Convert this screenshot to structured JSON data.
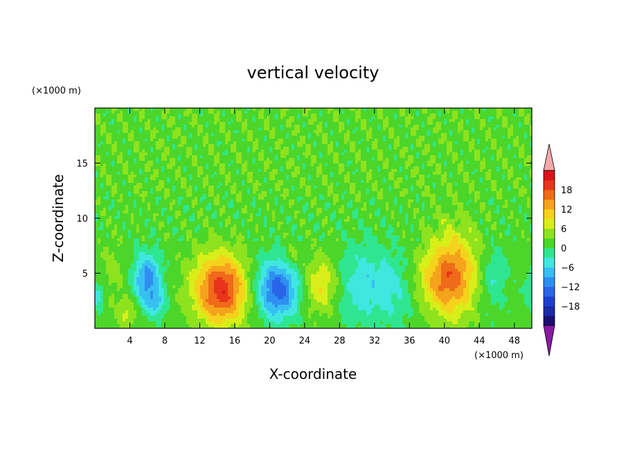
{
  "chart_data": {
    "type": "heatmap",
    "title": "vertical velocity",
    "xlabel": "X-coordinate",
    "ylabel": "Z-coordinate",
    "x_units": "(×1000 m)",
    "y_units": "(×1000 m)",
    "xlim": [
      0,
      50
    ],
    "ylim": [
      0,
      20
    ],
    "x_ticks": [
      4,
      8,
      12,
      16,
      20,
      24,
      28,
      32,
      36,
      40,
      44,
      48
    ],
    "y_ticks": [
      5,
      10,
      15
    ],
    "grid": false,
    "colorbar": {
      "placement": "right",
      "levels": [
        -21,
        -18,
        -15,
        -12,
        -9,
        -6,
        -3,
        0,
        3,
        6,
        9,
        12,
        15,
        18,
        21
      ],
      "tick_values": [
        18,
        12,
        6,
        0,
        -6,
        -12,
        -18
      ],
      "tick_labels": [
        "18",
        "12",
        "6",
        "0",
        "−6",
        "−12",
        "−18"
      ],
      "colors": [
        "#1a0f6e",
        "#1b2aa6",
        "#1d3fd0",
        "#2a64e8",
        "#2f8ff0",
        "#38bff2",
        "#40e6e0",
        "#2fe690",
        "#4cd62a",
        "#8ee21e",
        "#d8ee18",
        "#f5d21c",
        "#f5a21c",
        "#ef6a1a",
        "#e8341a",
        "#d8141a"
      ],
      "over_color": "#f5a8a8",
      "under_color": "#8a1aa6"
    },
    "features": [
      {
        "x": 14.5,
        "z": 3.5,
        "w": 85,
        "sx": 2.2,
        "sz": 2.2
      },
      {
        "x": 41.0,
        "z": 5.0,
        "w": 55,
        "sx": 2.0,
        "sz": 2.8
      },
      {
        "x": 39.0,
        "z": 4.2,
        "w": 25,
        "sx": 2.2,
        "sz": 1.8
      },
      {
        "x": 26.0,
        "z": 4.0,
        "w": 40,
        "sx": 1.5,
        "sz": 1.8
      },
      {
        "x": 21.0,
        "z": 3.5,
        "w": -70,
        "sx": 1.6,
        "sz": 1.8
      },
      {
        "x": 6.0,
        "z": 4.5,
        "w": -55,
        "sx": 1.1,
        "sz": 1.6
      },
      {
        "x": 7.0,
        "z": 2.3,
        "w": -30,
        "sx": 0.8,
        "sz": 0.9
      },
      {
        "x": 3.7,
        "z": 1.4,
        "w": 25,
        "sx": 0.7,
        "sz": 0.9
      },
      {
        "x": 31.0,
        "z": 4.0,
        "w": -30,
        "sx": 3.0,
        "sz": 2.5
      },
      {
        "x": 45.5,
        "z": 4.5,
        "w": -22,
        "sx": 1.1,
        "sz": 2.0
      },
      {
        "x": 22.5,
        "z": 6.5,
        "w": 18,
        "sx": 0.5,
        "sz": 0.7
      },
      {
        "x": 2.0,
        "z": 5.0,
        "w": 12,
        "sx": 1.0,
        "sz": 2.0
      },
      {
        "x": 0.3,
        "z": 3.0,
        "w": -25,
        "sx": 0.6,
        "sz": 1.0
      },
      {
        "x": 49.8,
        "z": 3.5,
        "w": -20,
        "sx": 0.5,
        "sz": 1.0
      },
      {
        "x": 18.0,
        "z": 4.0,
        "w": -10,
        "sx": 1.5,
        "sz": 2.5
      },
      {
        "x": 35.0,
        "z": 3.0,
        "w": -12,
        "sx": 1.5,
        "sz": 2.0
      }
    ]
  }
}
